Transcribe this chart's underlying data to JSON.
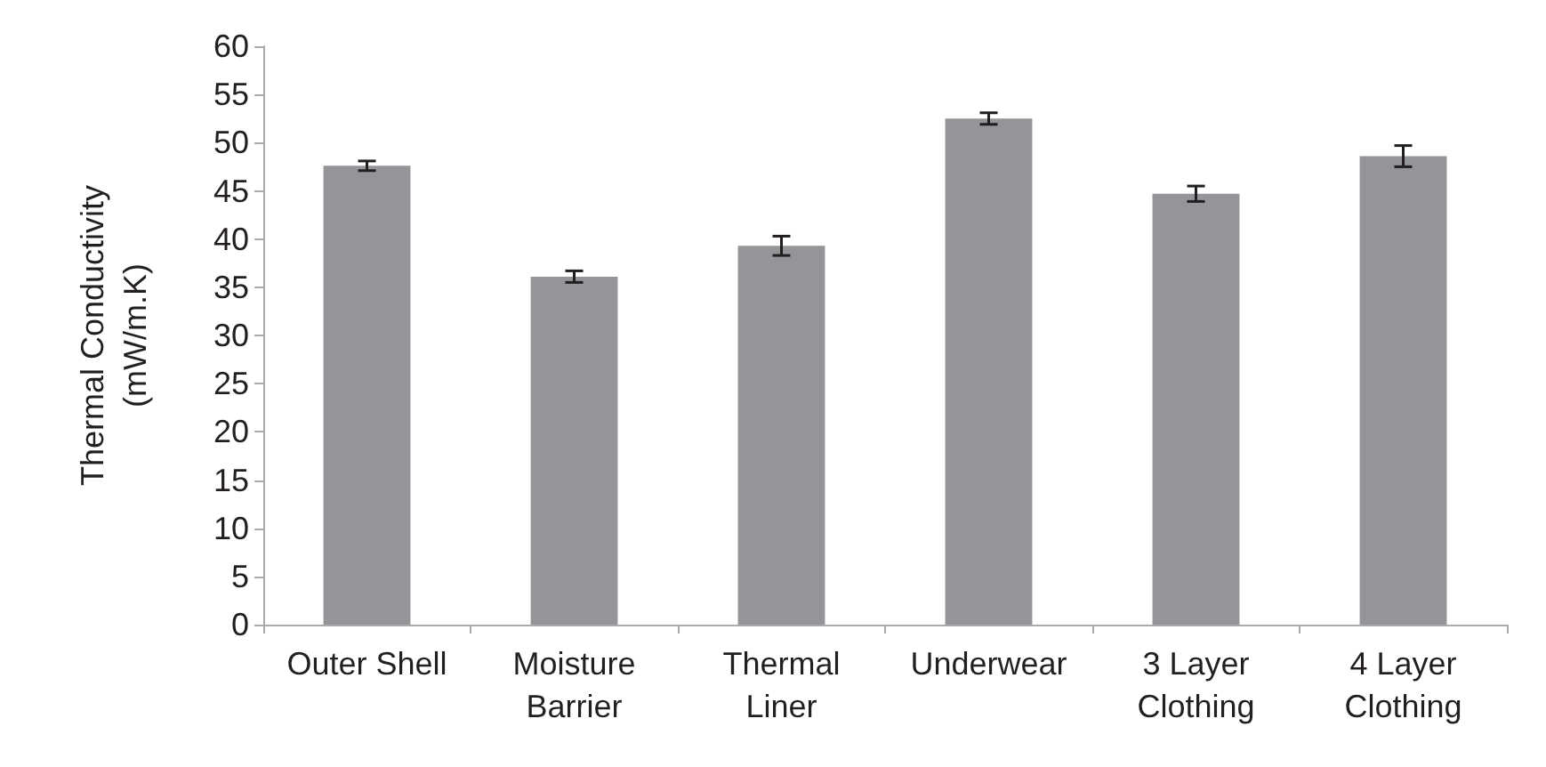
{
  "chart_data": {
    "type": "bar",
    "ylabel": "Thermal Conductivity\n(mW/m.K)",
    "categories": [
      "Outer Shell",
      "Moisture\nBarrier",
      "Thermal\nLiner",
      "Underwear",
      "3 Layer\nClothing",
      "4 Layer\nClothing"
    ],
    "values": [
      47.6,
      36.1,
      39.3,
      52.5,
      44.7,
      48.6
    ],
    "errors": [
      0.5,
      0.6,
      1.0,
      0.6,
      0.8,
      1.1
    ],
    "color": "#939598",
    "ylim": [
      0,
      60
    ],
    "yticks": [
      0,
      5,
      10,
      15,
      20,
      25,
      30,
      35,
      40,
      45,
      50,
      55,
      60
    ],
    "grid": false
  }
}
